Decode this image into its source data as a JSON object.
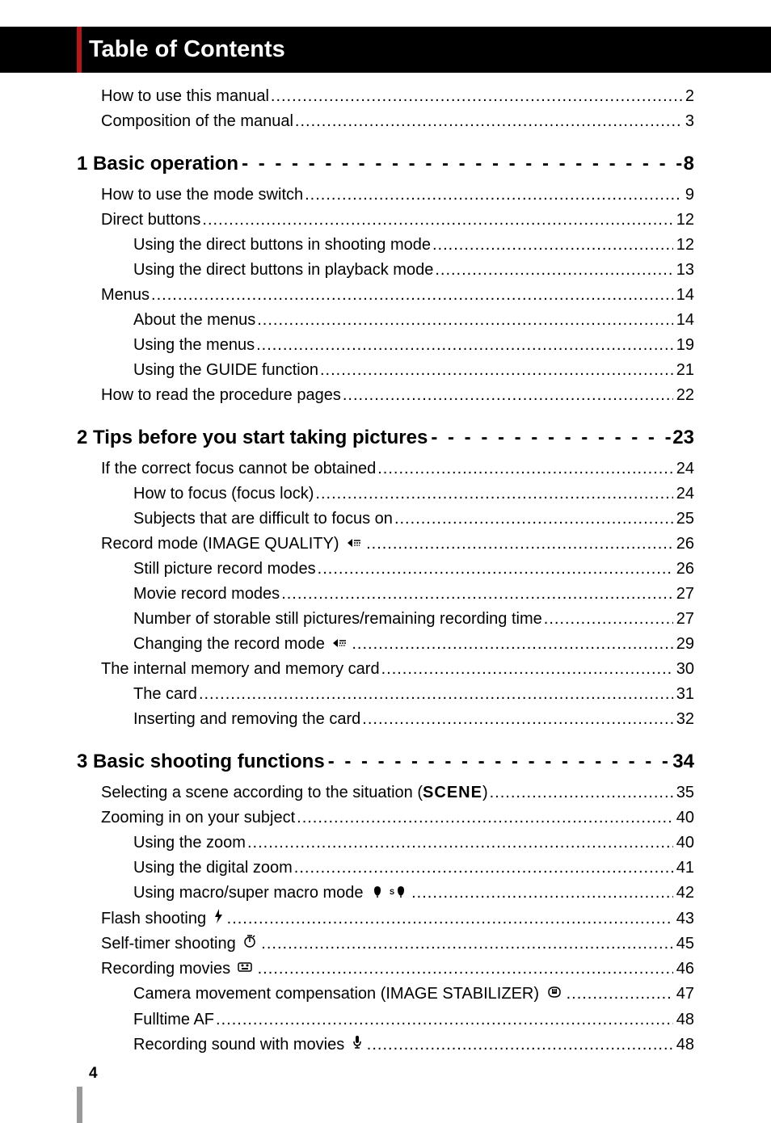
{
  "title": "Table of Contents",
  "page_number": "4",
  "colors": {
    "title_bg": "#000000",
    "title_text": "#ffffff",
    "accent": "#b31919",
    "body_text": "#000000",
    "footer_bar": "#999999"
  },
  "fonts": {
    "title_size": 29,
    "section_size": 24,
    "entry_size": 20,
    "page_number_size": 19
  },
  "pre_entries": [
    {
      "title": "How to use this manual",
      "page": "2",
      "level": 0
    },
    {
      "title": "Composition of the manual",
      "page": "3",
      "level": 0
    }
  ],
  "sections": [
    {
      "title": "1 Basic operation",
      "page": "8",
      "entries": [
        {
          "title": "How to use the mode switch",
          "page": "9",
          "level": 0
        },
        {
          "title": "Direct buttons",
          "page": "12",
          "level": 0
        },
        {
          "title": "Using the direct buttons in shooting mode",
          "page": "12",
          "level": 1
        },
        {
          "title": "Using the direct buttons in playback mode",
          "page": "13",
          "level": 1
        },
        {
          "title": "Menus",
          "page": "14",
          "level": 0
        },
        {
          "title": "About the menus",
          "page": "14",
          "level": 1
        },
        {
          "title": "Using the menus",
          "page": "19",
          "level": 1
        },
        {
          "title": "Using the GUIDE function",
          "page": "21",
          "level": 1
        },
        {
          "title": "How to read the procedure pages",
          "page": "22",
          "level": 0
        }
      ]
    },
    {
      "title": "2 Tips before you start taking pictures",
      "page": "23",
      "entries": [
        {
          "title": "If the correct focus cannot be obtained",
          "page": "24",
          "level": 0
        },
        {
          "title": "How to focus (focus lock)",
          "page": "24",
          "level": 1
        },
        {
          "title": "Subjects that are difficult to focus on",
          "page": "25",
          "level": 1
        },
        {
          "title": "Record mode (IMAGE QUALITY)",
          "page": "26",
          "level": 0,
          "icon": "quality"
        },
        {
          "title": "Still picture record modes",
          "page": "26",
          "level": 1
        },
        {
          "title": "Movie record modes",
          "page": "27",
          "level": 1
        },
        {
          "title": "Number of storable still pictures/remaining recording time",
          "page": "27",
          "level": 1
        },
        {
          "title": "Changing the record mode",
          "page": "29",
          "level": 1,
          "icon": "quality"
        },
        {
          "title": "The internal memory and memory card",
          "page": "30",
          "level": 0
        },
        {
          "title": "The card",
          "page": "31",
          "level": 1
        },
        {
          "title": "Inserting and removing the card",
          "page": "32",
          "level": 1
        }
      ]
    },
    {
      "title": "3 Basic shooting functions",
      "page": "34",
      "entries": [
        {
          "title": "Selecting a scene according to the situation (",
          "page": "35",
          "level": 0,
          "scene_suffix": ")"
        },
        {
          "title": "Zooming in on your subject",
          "page": "40",
          "level": 0
        },
        {
          "title": "Using the zoom",
          "page": "40",
          "level": 1
        },
        {
          "title": "Using the digital zoom",
          "page": "41",
          "level": 1
        },
        {
          "title": "Using macro/super macro mode",
          "page": "42",
          "level": 1,
          "icon": "macro"
        },
        {
          "title": "Flash shooting",
          "page": "43",
          "level": 0,
          "icon": "flash"
        },
        {
          "title": "Self-timer shooting",
          "page": "45",
          "level": 0,
          "icon": "timer"
        },
        {
          "title": "Recording movies",
          "page": "46",
          "level": 0,
          "icon": "movie"
        },
        {
          "title": "Camera movement compensation (IMAGE STABILIZER)",
          "page": "47",
          "level": 1,
          "icon": "stabilizer"
        },
        {
          "title": "Fulltime AF",
          "page": "48",
          "level": 1
        },
        {
          "title": "Recording sound with movies",
          "page": "48",
          "level": 1,
          "icon": "mic"
        }
      ]
    }
  ],
  "scene_label": "SCENE"
}
